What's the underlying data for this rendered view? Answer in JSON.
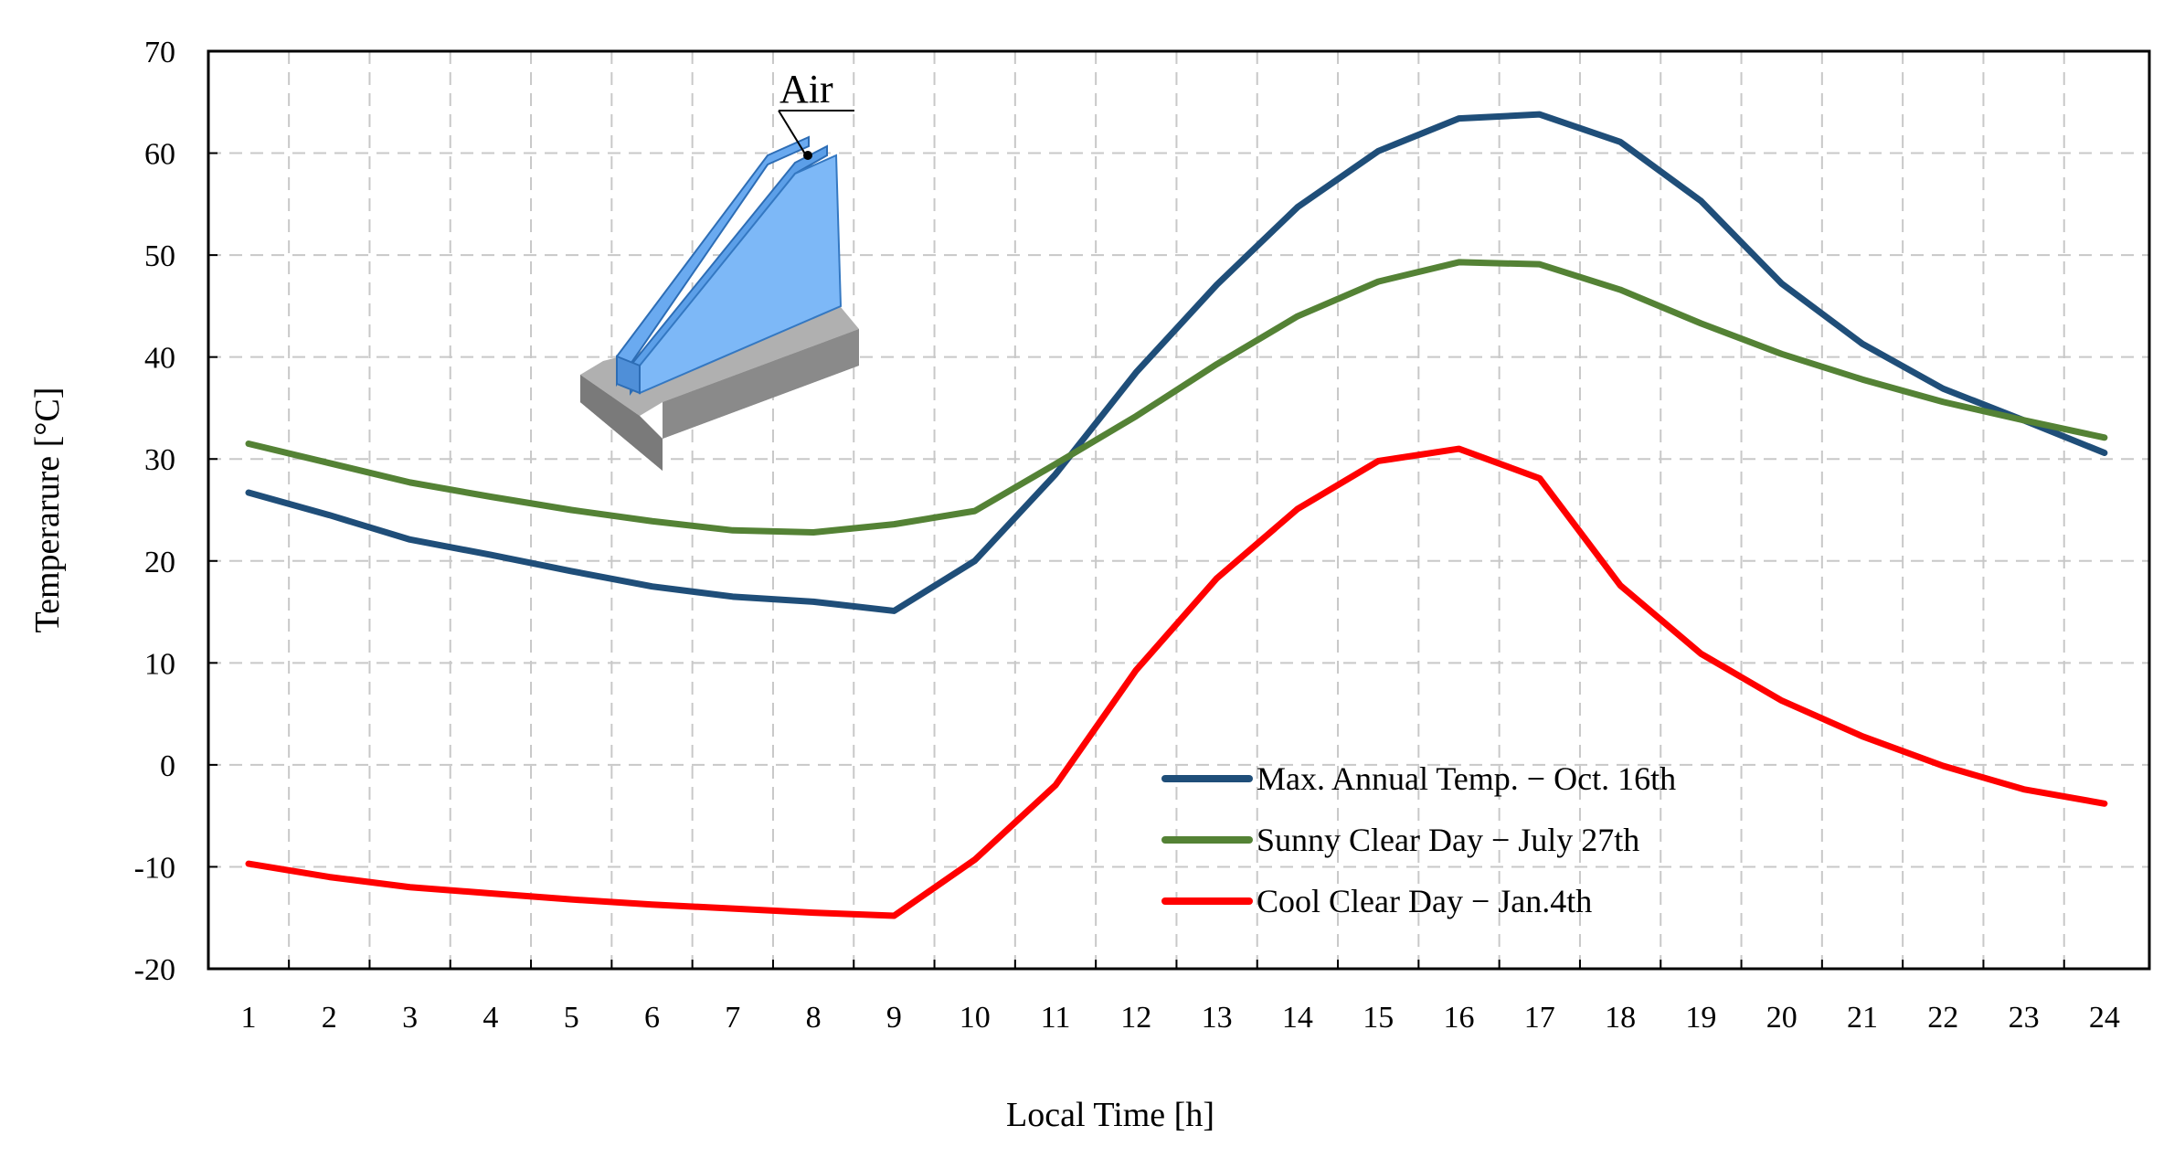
{
  "chart_data": {
    "type": "line",
    "xlabel": "Local Time [h]",
    "ylabel": "Temperarure [°C]",
    "ylim": [
      -20,
      70
    ],
    "yticks": [
      -20,
      -10,
      0,
      10,
      20,
      30,
      40,
      50,
      60,
      70
    ],
    "categories": [
      "1",
      "2",
      "3",
      "4",
      "5",
      "6",
      "7",
      "8",
      "9",
      "10",
      "11",
      "12",
      "13",
      "14",
      "15",
      "16",
      "17",
      "18",
      "19",
      "20",
      "21",
      "22",
      "23",
      "24"
    ],
    "grid": true,
    "legend_position": "bottom-right",
    "series": [
      {
        "name": "Max. Annual Temp. − Oct. 16th",
        "color": "#1f4e79",
        "values": [
          26.7,
          24.5,
          22.1,
          20.6,
          19.0,
          17.5,
          16.5,
          16.0,
          15.1,
          20.0,
          28.5,
          38.5,
          47.1,
          54.7,
          60.2,
          63.4,
          63.8,
          61.1,
          55.3,
          47.2,
          41.3,
          36.9,
          33.8,
          30.6
        ]
      },
      {
        "name": "Sunny Clear Day − July 27th",
        "color": "#548235",
        "values": [
          31.5,
          29.6,
          27.7,
          26.3,
          25.0,
          23.9,
          23.0,
          22.8,
          23.6,
          24.9,
          29.5,
          34.2,
          39.3,
          44.0,
          47.4,
          49.3,
          49.1,
          46.6,
          43.3,
          40.3,
          37.8,
          35.6,
          33.8,
          32.1
        ]
      },
      {
        "name": "Cool Clear Day − Jan.4th",
        "color": "#ff0000",
        "values": [
          -9.7,
          -11.0,
          -12.0,
          -12.6,
          -13.2,
          -13.7,
          -14.1,
          -14.5,
          -14.8,
          -9.3,
          -2.0,
          9.3,
          18.3,
          25.1,
          29.8,
          31.0,
          28.1,
          17.6,
          10.9,
          6.3,
          2.8,
          -0.1,
          -2.4,
          -3.8
        ]
      }
    ],
    "inset_label": "Air"
  }
}
